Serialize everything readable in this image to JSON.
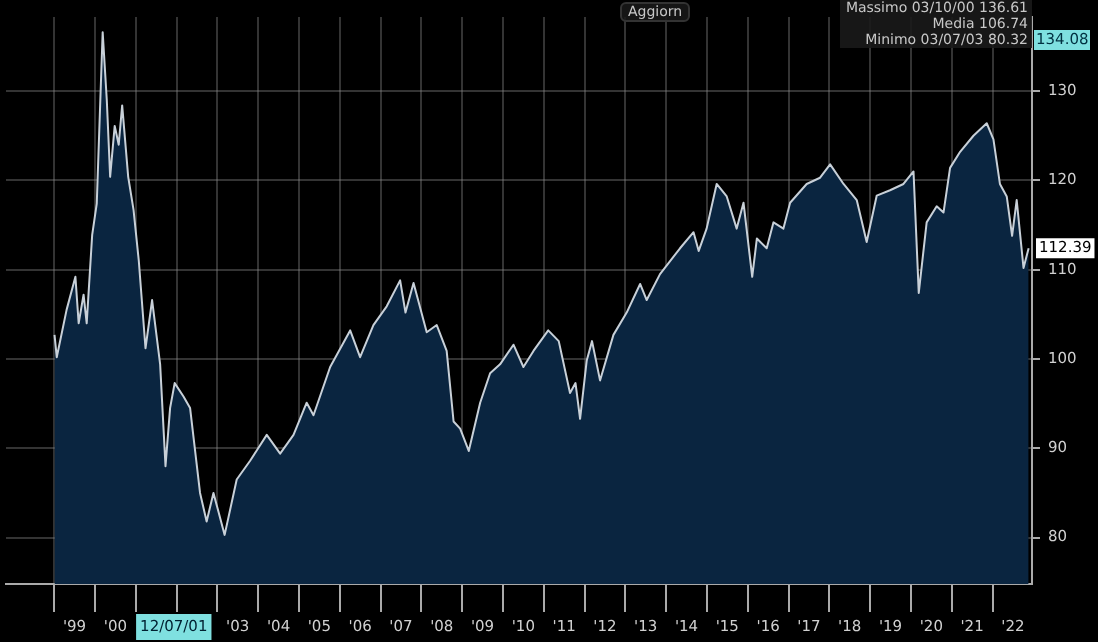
{
  "chart_data": {
    "type": "area",
    "x": [
      "1999-01-04",
      "1999-01-24",
      "1999-04-22",
      "1999-07-10",
      "1999-08-08",
      "1999-09-21",
      "1999-10-19",
      "1999-12-07",
      "2000-01-17",
      "2000-03-10",
      "2000-04-16",
      "2000-05-16",
      "2000-06-26",
      "2000-08-01",
      "2000-09-01",
      "2000-10-25",
      "2000-12-12",
      "2001-01-28",
      "2001-03-29",
      "2001-05-27",
      "2001-08-07",
      "2001-09-24",
      "2001-11-04",
      "2001-12-15",
      "2002-03-04",
      "2002-05-02",
      "2002-07-30",
      "2002-09-27",
      "2002-11-27",
      "2003-03-07",
      "2003-06-23",
      "2003-10-21",
      "2004-03-18",
      "2004-07-16",
      "2004-11-13",
      "2005-03-11",
      "2005-05-11",
      "2005-10-07",
      "2006-04-04",
      "2006-07-02",
      "2006-10-29",
      "2007-02-25",
      "2007-06-25",
      "2007-08-12",
      "2007-10-23",
      "2008-02-18",
      "2008-05-18",
      "2008-08-15",
      "2008-10-16",
      "2008-12-14",
      "2009-03-01",
      "2009-06-11",
      "2009-09-08",
      "2009-12-06",
      "2010-04-05",
      "2010-07-03",
      "2010-10-01",
      "2011-02-10",
      "2011-05-15",
      "2011-08-24",
      "2011-10-12",
      "2011-11-22",
      "2012-01-20",
      "2012-03-08",
      "2012-05-19",
      "2012-09-16",
      "2013-01-13",
      "2013-05-13",
      "2013-07-11",
      "2013-11-07",
      "2014-05-05",
      "2014-09-03",
      "2014-10-19",
      "2014-12-29",
      "2015-03-29",
      "2015-06-27",
      "2015-09-24",
      "2015-11-24",
      "2016-02-10",
      "2016-03-23",
      "2016-06-19",
      "2016-08-19",
      "2016-11-16",
      "2017-01-15",
      "2017-06-12",
      "2017-10-10",
      "2018-01-08",
      "2018-05-08",
      "2018-09-03",
      "2018-12-01",
      "2019-03-01",
      "2019-06-28",
      "2019-10-26",
      "2020-01-24",
      "2020-03-11",
      "2020-05-21",
      "2020-08-19",
      "2020-10-19",
      "2020-12-17",
      "2021-03-17",
      "2021-07-14",
      "2021-11-10",
      "2022-01-09",
      "2022-03-08",
      "2022-05-08",
      "2022-06-25",
      "2022-08-05",
      "2022-10-05",
      "2022-11-20"
    ],
    "series": [
      {
        "color": "#c8d0d8",
        "values": [
          102.7,
          100.2,
          105.5,
          109.2,
          104,
          107.2,
          104,
          113.9,
          117.4,
          136.6,
          129,
          120.4,
          126.1,
          124,
          128.4,
          120.4,
          116.7,
          111,
          101.2,
          106.6,
          99.4,
          88,
          94.5,
          97.3,
          95.8,
          94.5,
          85,
          81.8,
          85,
          80.3,
          86.5,
          88.6,
          91.5,
          89.4,
          91.5,
          95.1,
          93.7,
          99.1,
          103.2,
          100.2,
          103.8,
          105.9,
          108.8,
          105.2,
          108.5,
          103,
          103.8,
          100.9,
          93,
          92.2,
          89.7,
          95.1,
          98.4,
          99.4,
          101.6,
          99.1,
          100.9,
          103.2,
          102,
          96.2,
          97.3,
          93.3,
          99.8,
          102,
          97.6,
          102.7,
          105.2,
          108.4,
          106.6,
          109.5,
          112.4,
          114.2,
          112.1,
          114.6,
          119.6,
          118.2,
          114.6,
          117.5,
          109.2,
          113.5,
          112.4,
          115.3,
          114.6,
          117.5,
          119.6,
          120.3,
          121.8,
          119.6,
          117.8,
          113.1,
          118.3,
          118.9,
          119.6,
          121,
          107.4,
          115.3,
          117.1,
          116.4,
          121.4,
          123.2,
          125,
          126.4,
          124.6,
          119.6,
          118.2,
          113.8,
          117.8,
          110.2,
          112.4
        ]
      }
    ],
    "xlim": [
      "1997-10-27",
      "2022-12-20"
    ],
    "xticks": [
      {
        "value": "1999-01-01",
        "label": null
      },
      {
        "value": "1999-07-02",
        "label": "'99"
      },
      {
        "value": "2000-01-01",
        "label": null
      },
      {
        "value": "2000-07-02",
        "label": "'00"
      },
      {
        "value": "2001-01-01",
        "label": null
      },
      {
        "value": "2001-12-07",
        "label": "12/07/01"
      },
      {
        "value": "2002-01-01",
        "label": null
      },
      {
        "value": "2003-01-01",
        "label": null
      },
      {
        "value": "2003-07-02",
        "label": "'03"
      },
      {
        "value": "2004-01-01",
        "label": null
      },
      {
        "value": "2004-07-02",
        "label": "'04"
      },
      {
        "value": "2005-01-01",
        "label": null
      },
      {
        "value": "2005-07-02",
        "label": "'05"
      },
      {
        "value": "2006-01-01",
        "label": null
      },
      {
        "value": "2006-07-02",
        "label": "'06"
      },
      {
        "value": "2007-01-01",
        "label": null
      },
      {
        "value": "2007-07-02",
        "label": "'07"
      },
      {
        "value": "2008-01-01",
        "label": null
      },
      {
        "value": "2008-07-02",
        "label": "'08"
      },
      {
        "value": "2009-01-01",
        "label": null
      },
      {
        "value": "2009-07-02",
        "label": "'09"
      },
      {
        "value": "2010-01-01",
        "label": null
      },
      {
        "value": "2010-07-02",
        "label": "'10"
      },
      {
        "value": "2011-01-01",
        "label": null
      },
      {
        "value": "2011-07-02",
        "label": "'11"
      },
      {
        "value": "2012-01-01",
        "label": null
      },
      {
        "value": "2012-07-02",
        "label": "'12"
      },
      {
        "value": "2013-01-01",
        "label": null
      },
      {
        "value": "2013-07-02",
        "label": "'13"
      },
      {
        "value": "2014-01-01",
        "label": null
      },
      {
        "value": "2014-07-02",
        "label": "'14"
      },
      {
        "value": "2015-01-01",
        "label": null
      },
      {
        "value": "2015-07-02",
        "label": "'15"
      },
      {
        "value": "2016-01-01",
        "label": null
      },
      {
        "value": "2016-07-02",
        "label": "'16"
      },
      {
        "value": "2017-01-01",
        "label": null
      },
      {
        "value": "2017-07-02",
        "label": "'17"
      },
      {
        "value": "2018-01-01",
        "label": null
      },
      {
        "value": "2018-07-02",
        "label": "'18"
      },
      {
        "value": "2019-01-01",
        "label": null
      },
      {
        "value": "2019-07-02",
        "label": "'19"
      },
      {
        "value": "2020-01-01",
        "label": null
      },
      {
        "value": "2020-07-02",
        "label": "'20"
      },
      {
        "value": "2021-01-01",
        "label": null
      },
      {
        "value": "2021-07-02",
        "label": "'21"
      },
      {
        "value": "2022-01-01",
        "label": null
      },
      {
        "value": "2022-07-02",
        "label": "'22"
      }
    ],
    "ylim": [
      74.8,
      138.3
    ],
    "yticks": [
      80,
      90,
      100,
      110,
      120,
      130
    ],
    "grid": true,
    "annotations": [
      "Aggiorn",
      "Massimo 03/10/00 136.61",
      "Media 106.74",
      "Minimo 03/07/03 80.32",
      "134.08",
      {
        "text": "112.39",
        "x": "2022-11-20",
        "y": 112.39
      }
    ]
  }
}
